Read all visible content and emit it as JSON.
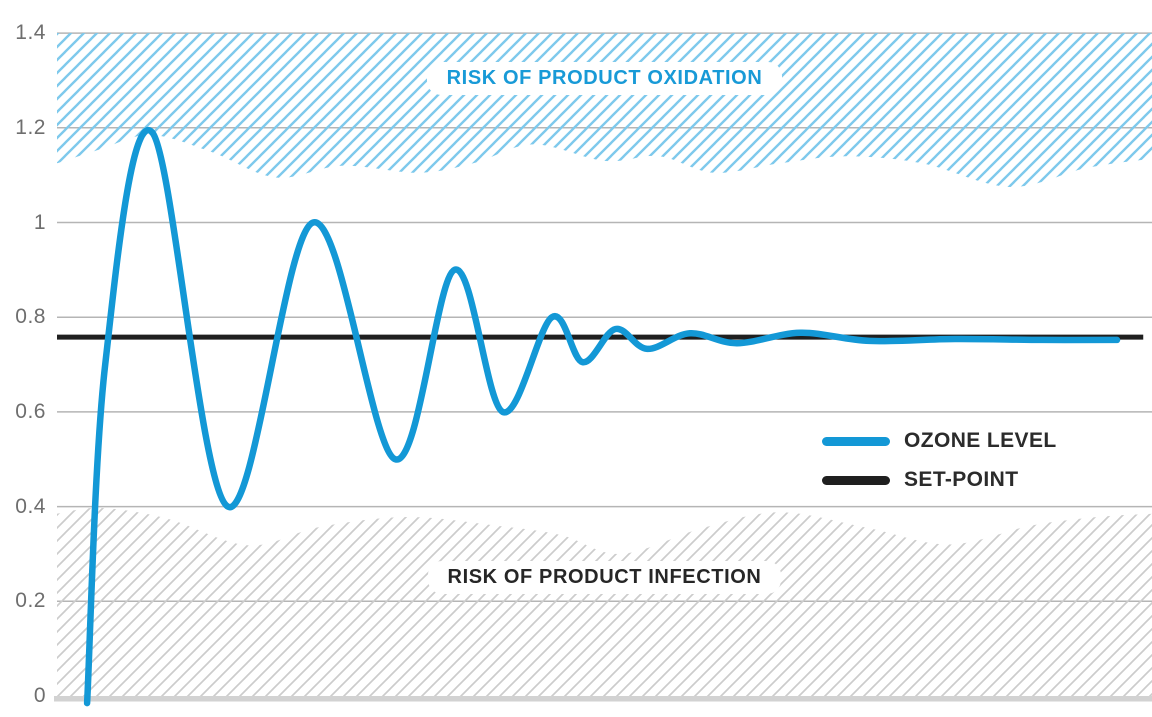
{
  "colors": {
    "accent_blue": "#1398d6",
    "hatch_blue": "#7ec9ec",
    "hatch_gray": "#cccccc",
    "setpoint_black": "#1f1f1f",
    "gridline": "#b5b5b5",
    "baseline": "#d2d2d2",
    "tick_text": "#6e6e6e",
    "legend_text": "#2b2b2b"
  },
  "chart_data": {
    "type": "line",
    "title": "",
    "xlabel": "",
    "ylabel": "",
    "grid": true,
    "x_axis": {
      "range": [
        0,
        100
      ],
      "tick_labels_visible": false
    },
    "y_axis": {
      "range": [
        0,
        1.4
      ],
      "tick_values": [
        1.4,
        1.2,
        1,
        0.8,
        0.6,
        0.4,
        0.2,
        0
      ],
      "tick_labels": [
        "1.4",
        "1.2",
        "1",
        "0.8",
        "0.6",
        "0.4",
        "0.2",
        "0"
      ]
    },
    "set_point_value": 0.758,
    "series": [
      {
        "name": "OZONE LEVEL",
        "color": "#1398d6",
        "points": [
          [
            2.75,
            -0.015
          ],
          [
            4.4,
            0.7
          ],
          [
            8.7,
            1.19
          ],
          [
            15.6,
            0.4
          ],
          [
            23.4,
            1.0
          ],
          [
            30.9,
            0.5
          ],
          [
            36.3,
            0.9
          ],
          [
            40.7,
            0.6
          ],
          [
            45.2,
            0.8
          ],
          [
            48.0,
            0.705
          ],
          [
            51.0,
            0.775
          ],
          [
            53.9,
            0.733
          ],
          [
            57.8,
            0.766
          ],
          [
            62.1,
            0.745
          ],
          [
            67.9,
            0.767
          ],
          [
            74.2,
            0.75
          ],
          [
            82.0,
            0.754
          ],
          [
            90.0,
            0.752
          ],
          [
            96.8,
            0.752
          ]
        ]
      },
      {
        "name": "SET-POINT",
        "color": "#1f1f1f",
        "points": [
          [
            0,
            0.758
          ],
          [
            99.2,
            0.758
          ]
        ]
      }
    ],
    "zones": [
      {
        "label": "RISK OF PRODUCT OXIDATION",
        "position": "top",
        "fixed_edge_value": 1.4,
        "label_color": "#189ad7",
        "hatch_color": "#7ec9ec",
        "boundary_points": [
          [
            0,
            1.125
          ],
          [
            4,
            1.155
          ],
          [
            8.5,
            1.185
          ],
          [
            14,
            1.15
          ],
          [
            20,
            1.095
          ],
          [
            26,
            1.12
          ],
          [
            33,
            1.105
          ],
          [
            38,
            1.125
          ],
          [
            43.5,
            1.165
          ],
          [
            50,
            1.13
          ],
          [
            55,
            1.14
          ],
          [
            60,
            1.105
          ],
          [
            66,
            1.125
          ],
          [
            72,
            1.14
          ],
          [
            79,
            1.125
          ],
          [
            87,
            1.075
          ],
          [
            94,
            1.115
          ],
          [
            100,
            1.135
          ]
        ]
      },
      {
        "label": "RISK OF PRODUCT INFECTION",
        "position": "bottom",
        "fixed_edge_value": 0,
        "label_color": "#262626",
        "hatch_color": "#cccccc",
        "boundary_points": [
          [
            0,
            0.385
          ],
          [
            4,
            0.397
          ],
          [
            10,
            0.375
          ],
          [
            17.5,
            0.318
          ],
          [
            24,
            0.357
          ],
          [
            32,
            0.378
          ],
          [
            40,
            0.36
          ],
          [
            46,
            0.34
          ],
          [
            51.5,
            0.3
          ],
          [
            59,
            0.355
          ],
          [
            66,
            0.388
          ],
          [
            74,
            0.355
          ],
          [
            81.5,
            0.32
          ],
          [
            89,
            0.36
          ],
          [
            95,
            0.378
          ],
          [
            100,
            0.385
          ]
        ]
      }
    ],
    "legend": {
      "position": "right-middle",
      "items": [
        {
          "label": "OZONE LEVEL",
          "color": "#1398d6"
        },
        {
          "label": "SET-POINT",
          "color": "#1f1f1f"
        }
      ]
    }
  }
}
